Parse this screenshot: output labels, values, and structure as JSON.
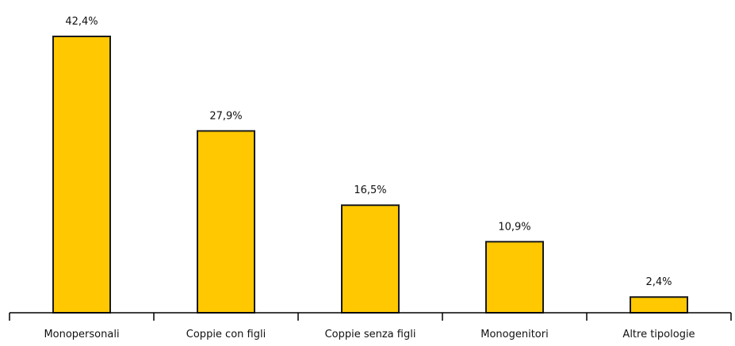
{
  "chart_data": {
    "type": "bar",
    "categories": [
      "Monopersonali",
      "Coppie con figli",
      "Coppie senza figli",
      "Monogenitori",
      "Altre tipologie"
    ],
    "values": [
      42.4,
      27.9,
      16.5,
      10.9,
      2.4
    ],
    "value_labels": [
      "42,4%",
      "27,9%",
      "16,5%",
      "10,9%",
      "2,4%"
    ],
    "title": "",
    "xlabel": "",
    "ylabel": "",
    "ylim": [
      0,
      42.4
    ],
    "grid": false,
    "legend": "none",
    "bar_color": "#FFC800"
  }
}
